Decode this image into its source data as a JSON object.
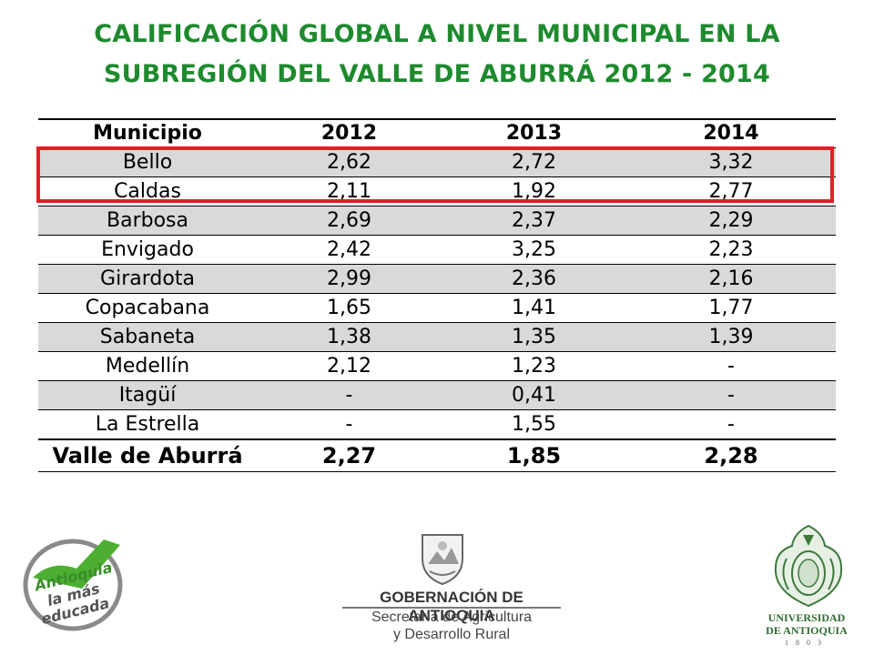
{
  "title_line1": "CALIFICACIÓN GLOBAL A NIVEL MUNICIPAL EN LA",
  "title_line2": "SUBREGIÓN DEL VALLE DE ABURRÁ 2012 - 2014",
  "table": {
    "headers": [
      "Municipio",
      "2012",
      "2013",
      "2014"
    ],
    "rows": [
      [
        "Bello",
        "2,62",
        "2,72",
        "3,32"
      ],
      [
        "Caldas",
        "2,11",
        "1,92",
        "2,77"
      ],
      [
        "Barbosa",
        "2,69",
        "2,37",
        "2,29"
      ],
      [
        "Envigado",
        "2,42",
        "3,25",
        "2,23"
      ],
      [
        "Girardota",
        "2,99",
        "2,36",
        "2,16"
      ],
      [
        "Copacabana",
        "1,65",
        "1,41",
        "1,77"
      ],
      [
        "Sabaneta",
        "1,38",
        "1,35",
        "1,39"
      ],
      [
        "Medellín",
        "2,12",
        "1,23",
        "-"
      ],
      [
        "Itagüí",
        "-",
        "0,41",
        "-"
      ],
      [
        "La Estrella",
        "-",
        "1,55",
        "-"
      ]
    ],
    "total": [
      "Valle de Aburrá",
      "2,27",
      "1,85",
      "2,28"
    ]
  },
  "colors": {
    "title_green": "#1e8a2e",
    "highlight_red": "#e01f26",
    "row_shade": "#d9d9d9"
  },
  "logos": {
    "left": {
      "line1": "Antioquia",
      "line2": "la más",
      "line3": "educada",
      "icon": "checkmark-icon"
    },
    "center": {
      "name": "GOBERNACIÓN DE ANTIOQUIA",
      "sub1": "Secretaría de Agricultura",
      "sub2": "y Desarrollo Rural",
      "icon": "coat-of-arms-icon"
    },
    "right": {
      "name1": "UNIVERSIDAD",
      "name2": "DE ANTIOQUIA",
      "year": "1803",
      "icon": "university-seal-icon"
    }
  }
}
